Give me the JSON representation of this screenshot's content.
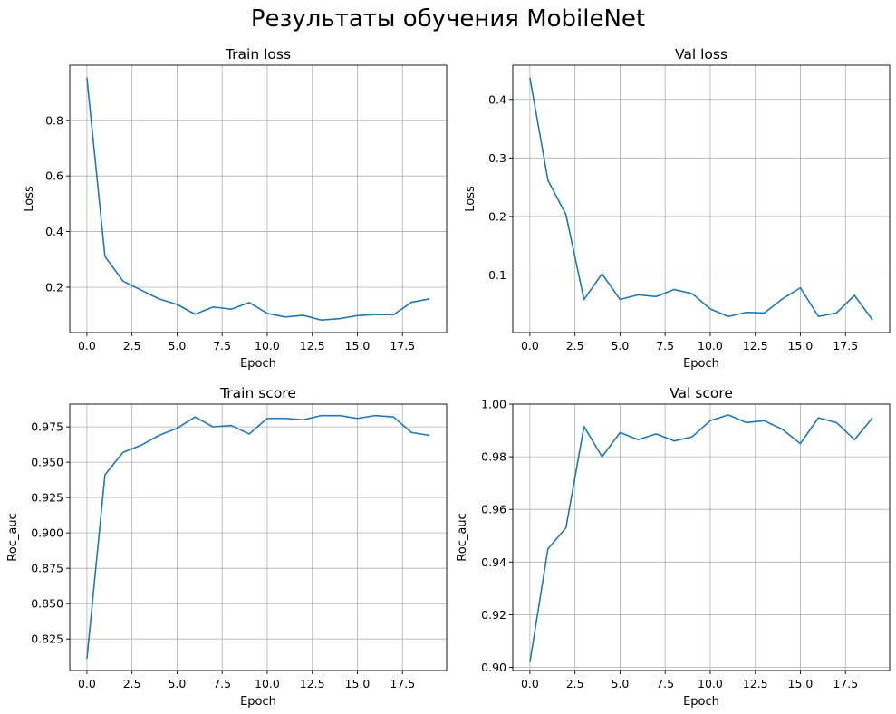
{
  "figure": {
    "title": "Результаты обучения MobileNet"
  },
  "chart_data": [
    {
      "type": "line",
      "title": "Train loss",
      "xlabel": "Epoch",
      "ylabel": "Loss",
      "xlim": [
        -0.95,
        19.95
      ],
      "ylim": [
        0.037,
        0.998
      ],
      "xticks": [
        0.0,
        2.5,
        5.0,
        7.5,
        10.0,
        12.5,
        15.0,
        17.5
      ],
      "xtick_labels": [
        "0.0",
        "2.5",
        "5.0",
        "7.5",
        "10.0",
        "12.5",
        "15.0",
        "17.5"
      ],
      "yticks": [
        0.2,
        0.4,
        0.6,
        0.8
      ],
      "ytick_labels": [
        "0.2",
        "0.4",
        "0.6",
        "0.8"
      ],
      "grid": true,
      "line_color": "#1f77b4",
      "x": [
        0,
        1,
        2,
        3,
        4,
        5,
        6,
        7,
        8,
        9,
        10,
        11,
        12,
        13,
        14,
        15,
        16,
        17,
        18,
        19
      ],
      "y": [
        0.953,
        0.311,
        0.222,
        0.19,
        0.158,
        0.138,
        0.103,
        0.129,
        0.121,
        0.145,
        0.106,
        0.093,
        0.099,
        0.082,
        0.087,
        0.098,
        0.102,
        0.101,
        0.146,
        0.158
      ]
    },
    {
      "type": "line",
      "title": "Val loss",
      "xlabel": "Epoch",
      "ylabel": "Loss",
      "xlim": [
        -0.95,
        19.95
      ],
      "ylim": [
        0.0015,
        0.4585
      ],
      "xticks": [
        0.0,
        2.5,
        5.0,
        7.5,
        10.0,
        12.5,
        15.0,
        17.5
      ],
      "xtick_labels": [
        "0.0",
        "2.5",
        "5.0",
        "7.5",
        "10.0",
        "12.5",
        "15.0",
        "17.5"
      ],
      "yticks": [
        0.1,
        0.2,
        0.3,
        0.4
      ],
      "ytick_labels": [
        "0.1",
        "0.2",
        "0.3",
        "0.4"
      ],
      "grid": true,
      "line_color": "#1f77b4",
      "x": [
        0,
        1,
        2,
        3,
        4,
        5,
        6,
        7,
        8,
        9,
        10,
        11,
        12,
        13,
        14,
        15,
        16,
        17,
        18,
        19
      ],
      "y": [
        0.437,
        0.262,
        0.203,
        0.058,
        0.102,
        0.058,
        0.066,
        0.063,
        0.075,
        0.068,
        0.042,
        0.029,
        0.036,
        0.035,
        0.059,
        0.078,
        0.029,
        0.035,
        0.065,
        0.023
      ]
    },
    {
      "type": "line",
      "title": "Train score",
      "xlabel": "Epoch",
      "ylabel": "Roc_auc",
      "xlim": [
        -0.95,
        19.95
      ],
      "ylim": [
        0.8027,
        0.9911
      ],
      "xticks": [
        0.0,
        2.5,
        5.0,
        7.5,
        10.0,
        12.5,
        15.0,
        17.5
      ],
      "xtick_labels": [
        "0.0",
        "2.5",
        "5.0",
        "7.5",
        "10.0",
        "12.5",
        "15.0",
        "17.5"
      ],
      "yticks": [
        0.825,
        0.85,
        0.875,
        0.9,
        0.925,
        0.95,
        0.975
      ],
      "ytick_labels": [
        "0.825",
        "0.850",
        "0.875",
        "0.900",
        "0.925",
        "0.950",
        "0.975"
      ],
      "grid": true,
      "line_color": "#1f77b4",
      "x": [
        0,
        1,
        2,
        3,
        4,
        5,
        6,
        7,
        8,
        9,
        10,
        11,
        12,
        13,
        14,
        15,
        16,
        17,
        18,
        19
      ],
      "y": [
        0.811,
        0.941,
        0.957,
        0.962,
        0.969,
        0.974,
        0.982,
        0.975,
        0.976,
        0.97,
        0.981,
        0.981,
        0.98,
        0.983,
        0.983,
        0.981,
        0.983,
        0.982,
        0.971,
        0.969
      ]
    },
    {
      "type": "line",
      "title": "Val score",
      "xlabel": "Epoch",
      "ylabel": "Roc_auc",
      "xlim": [
        -0.95,
        19.95
      ],
      "ylim": [
        0.8988,
        1.0
      ],
      "xticks": [
        0.0,
        2.5,
        5.0,
        7.5,
        10.0,
        12.5,
        15.0,
        17.5
      ],
      "xtick_labels": [
        "0.0",
        "2.5",
        "5.0",
        "7.5",
        "10.0",
        "12.5",
        "15.0",
        "17.5"
      ],
      "yticks": [
        0.9,
        0.92,
        0.94,
        0.96,
        0.98,
        1.0
      ],
      "ytick_labels": [
        "0.90",
        "0.92",
        "0.94",
        "0.96",
        "0.98",
        "1.00"
      ],
      "grid": true,
      "line_color": "#1f77b4",
      "x": [
        0,
        1,
        2,
        3,
        4,
        5,
        6,
        7,
        8,
        9,
        10,
        11,
        12,
        13,
        14,
        15,
        16,
        17,
        18,
        19
      ],
      "y": [
        0.902,
        0.945,
        0.953,
        0.9915,
        0.98,
        0.9892,
        0.9865,
        0.9887,
        0.986,
        0.9876,
        0.9937,
        0.9959,
        0.993,
        0.9937,
        0.9904,
        0.985,
        0.9948,
        0.993,
        0.9865,
        0.9948
      ]
    }
  ]
}
